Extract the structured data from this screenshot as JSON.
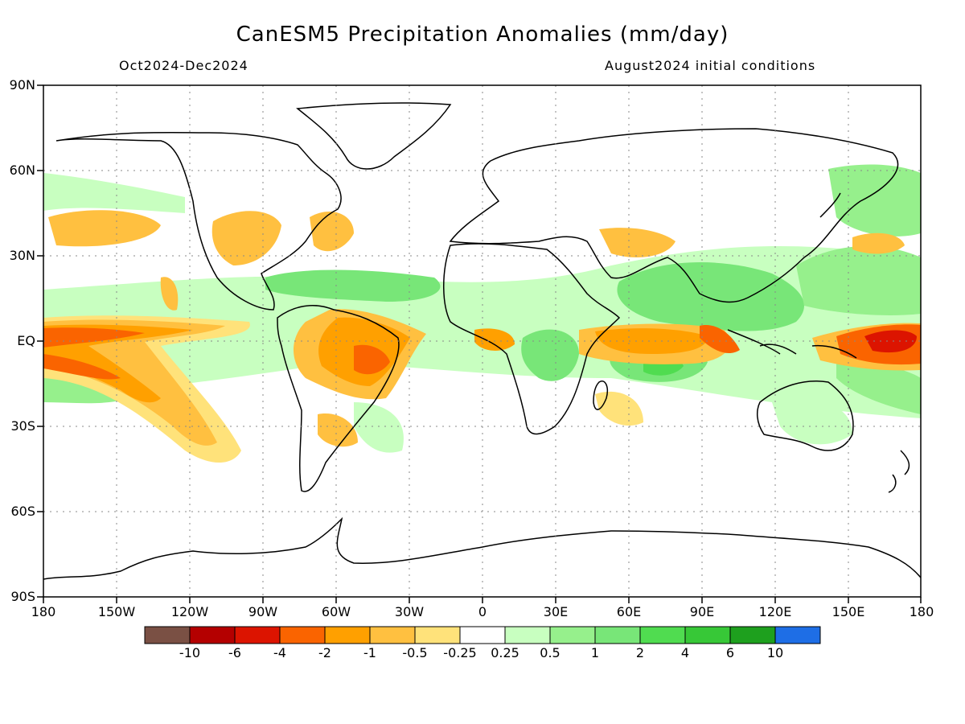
{
  "title": "CanESM5 Precipitation Anomalies (mm/day)",
  "period": "Oct2024-Dec2024",
  "init": "August2024 initial conditions",
  "lat_labels": [
    "90N",
    "60N",
    "30N",
    "EQ",
    "30S",
    "60S",
    "90S"
  ],
  "lon_labels": [
    "180",
    "150W",
    "120W",
    "90W",
    "60W",
    "30W",
    "0",
    "30E",
    "60E",
    "90E",
    "120E",
    "150E",
    "180"
  ],
  "colorbar": {
    "labels": [
      "-10",
      "-6",
      "-4",
      "-2",
      "-1",
      "-0.5",
      "-0.25",
      "0.25",
      "0.5",
      "1",
      "2",
      "4",
      "6",
      "10"
    ],
    "colors": [
      "#7a5044",
      "#b40000",
      "#dc1400",
      "#fa6400",
      "#ffa000",
      "#ffc040",
      "#ffe27a",
      "#ffffff",
      "#c8ffc0",
      "#96f08c",
      "#78e678",
      "#50dc50",
      "#37c837",
      "#1ea01e",
      "#1e6ee6"
    ]
  },
  "map_data": {
    "type": "filled_contour_map",
    "projection": "equirectangular",
    "lon_range": [
      -180,
      180
    ],
    "lat_range": [
      -90,
      90
    ],
    "variable": "precipitation anomaly",
    "units": "mm/day",
    "features": [
      {
        "region": "central-eastern equatorial Pacific",
        "lon": [
          -180,
          -120
        ],
        "lat": [
          -10,
          8
        ],
        "anomaly": "dry (-2 to -4)"
      },
      {
        "region": "western equatorial Pacific",
        "lon": [
          140,
          180
        ],
        "lat": [
          -10,
          8
        ],
        "anomaly": "dry (-2 to -6)"
      },
      {
        "region": "northern Amazon",
        "lon": [
          -75,
          -40
        ],
        "lat": [
          -15,
          12
        ],
        "anomaly": "dry (-1 to -4)"
      },
      {
        "region": "western equatorial Indian Ocean",
        "lon": [
          45,
          80
        ],
        "lat": [
          -5,
          5
        ],
        "anomaly": "dry (-1 to -2)"
      },
      {
        "region": "Maritime Continent / South China Sea",
        "lon": [
          95,
          140
        ],
        "lat": [
          -10,
          25
        ],
        "anomaly": "wet (0.5 to 2)"
      },
      {
        "region": "eastern Indian Ocean",
        "lon": [
          60,
          100
        ],
        "lat": [
          -15,
          20
        ],
        "anomaly": "wet (0.5 to 4)"
      },
      {
        "region": "Caribbean / tropical Atlantic",
        "lon": [
          -90,
          -20
        ],
        "lat": [
          5,
          25
        ],
        "anomaly": "wet (0.5 to 2)"
      },
      {
        "region": "central Africa",
        "lon": [
          20,
          40
        ],
        "lat": [
          -15,
          5
        ],
        "anomaly": "wet (0.5 to 2)"
      }
    ]
  }
}
